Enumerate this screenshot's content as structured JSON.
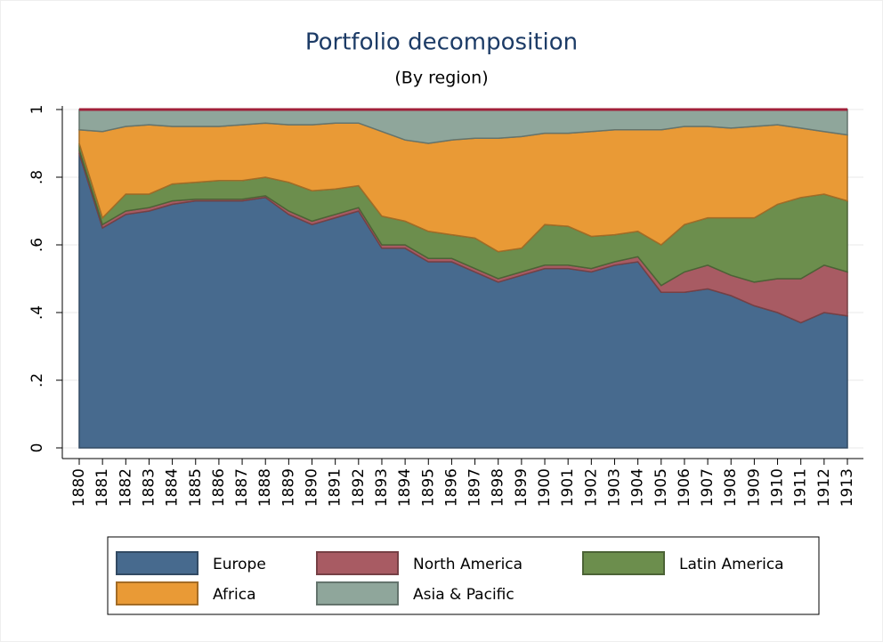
{
  "chart_data": {
    "type": "stacked-area",
    "title": "Portfolio decomposition",
    "subtitle": "(By region)",
    "x": [
      1880,
      1881,
      1882,
      1883,
      1884,
      1885,
      1886,
      1887,
      1888,
      1889,
      1890,
      1891,
      1892,
      1893,
      1894,
      1895,
      1896,
      1897,
      1898,
      1899,
      1900,
      1901,
      1902,
      1903,
      1904,
      1905,
      1906,
      1907,
      1908,
      1909,
      1910,
      1911,
      1912,
      1913
    ],
    "xlim": [
      1880,
      1913
    ],
    "ylim": [
      0,
      1
    ],
    "yticks": [
      0,
      {
        "value": 0.2,
        "label": ".2"
      },
      {
        "value": 0.4,
        "label": ".4"
      },
      {
        "value": 0.6,
        "label": ".6"
      },
      {
        "value": 0.8,
        "label": ".8"
      },
      1
    ],
    "grid": true,
    "series": [
      {
        "name": "Europe",
        "color": "#476a8e",
        "values": [
          0.87,
          0.65,
          0.69,
          0.7,
          0.72,
          0.73,
          0.73,
          0.73,
          0.74,
          0.69,
          0.66,
          0.68,
          0.7,
          0.59,
          0.59,
          0.55,
          0.55,
          0.52,
          0.49,
          0.51,
          0.53,
          0.53,
          0.52,
          0.54,
          0.55,
          0.46,
          0.46,
          0.47,
          0.45,
          0.42,
          0.4,
          0.37,
          0.4,
          0.39
        ]
      },
      {
        "name": "North America",
        "color": "#a85b63",
        "values": [
          0.01,
          0.01,
          0.01,
          0.01,
          0.01,
          0.005,
          0.005,
          0.005,
          0.005,
          0.01,
          0.01,
          0.01,
          0.01,
          0.01,
          0.01,
          0.01,
          0.01,
          0.01,
          0.01,
          0.01,
          0.01,
          0.01,
          0.01,
          0.01,
          0.015,
          0.02,
          0.06,
          0.07,
          0.06,
          0.07,
          0.1,
          0.13,
          0.14,
          0.13
        ]
      },
      {
        "name": "Latin America",
        "color": "#6c8e4d",
        "values": [
          0.02,
          0.02,
          0.05,
          0.04,
          0.05,
          0.05,
          0.055,
          0.055,
          0.055,
          0.085,
          0.09,
          0.075,
          0.065,
          0.085,
          0.07,
          0.08,
          0.07,
          0.09,
          0.08,
          0.07,
          0.12,
          0.115,
          0.095,
          0.08,
          0.075,
          0.12,
          0.14,
          0.14,
          0.17,
          0.19,
          0.22,
          0.24,
          0.21,
          0.21
        ]
      },
      {
        "name": "Africa",
        "color": "#e99a36",
        "values": [
          0.04,
          0.255,
          0.2,
          0.205,
          0.17,
          0.165,
          0.16,
          0.165,
          0.16,
          0.17,
          0.195,
          0.195,
          0.185,
          0.25,
          0.24,
          0.26,
          0.28,
          0.295,
          0.335,
          0.33,
          0.27,
          0.275,
          0.31,
          0.31,
          0.3,
          0.34,
          0.29,
          0.27,
          0.265,
          0.27,
          0.235,
          0.205,
          0.185,
          0.195
        ]
      },
      {
        "name": "Asia & Pacific",
        "color": "#8fa69b",
        "values": [
          0.06,
          0.065,
          0.05,
          0.045,
          0.05,
          0.05,
          0.05,
          0.045,
          0.04,
          0.045,
          0.045,
          0.04,
          0.04,
          0.065,
          0.09,
          0.1,
          0.09,
          0.085,
          0.085,
          0.08,
          0.07,
          0.07,
          0.065,
          0.06,
          0.06,
          0.06,
          0.05,
          0.05,
          0.055,
          0.05,
          0.045,
          0.055,
          0.065,
          0.075
        ]
      }
    ]
  }
}
